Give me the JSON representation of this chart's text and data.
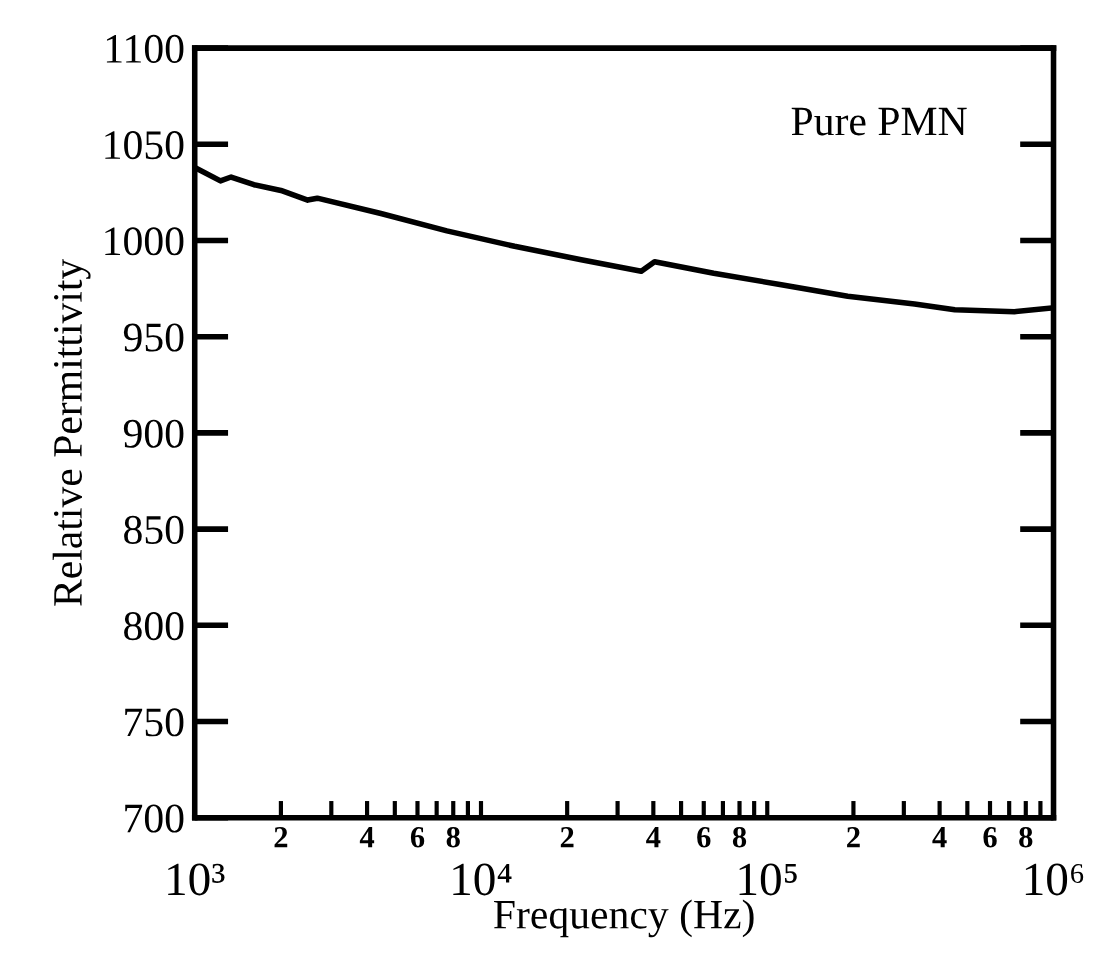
{
  "chart_data": {
    "type": "line",
    "xlabel": "Frequency (Hz)",
    "ylabel": "Relative Permittivity",
    "annotations": [
      "Pure PMN",
      "2",
      "4",
      "6",
      "8",
      "2",
      "4",
      "6",
      "8",
      "2",
      "4",
      "6",
      "8"
    ],
    "log": "x",
    "grid": false,
    "marker": "none",
    "line_style": "solid",
    "xlim": [
      1000,
      1000000
    ],
    "ylim": [
      700,
      1100
    ],
    "yticks": [
      700,
      750,
      800,
      850,
      900,
      950,
      1000,
      1050,
      1100
    ],
    "xticks": [
      {
        "value": 1000,
        "label": "10³"
      },
      {
        "value": 2000,
        "label": null
      },
      {
        "value": 3000,
        "label": null
      },
      {
        "value": 4000,
        "label": null
      },
      {
        "value": 5000,
        "label": null
      },
      {
        "value": 6000,
        "label": null
      },
      {
        "value": 7000,
        "label": null
      },
      {
        "value": 8000,
        "label": null
      },
      {
        "value": 9000,
        "label": null
      },
      {
        "value": 10000,
        "label": "10⁴"
      },
      {
        "value": 20000,
        "label": null
      },
      {
        "value": 30000,
        "label": null
      },
      {
        "value": 40000,
        "label": null
      },
      {
        "value": 50000,
        "label": null
      },
      {
        "value": 60000,
        "label": null
      },
      {
        "value": 70000,
        "label": null
      },
      {
        "value": 80000,
        "label": null
      },
      {
        "value": 90000,
        "label": null
      },
      {
        "value": 100000,
        "label": "10⁵"
      },
      {
        "value": 200000,
        "label": null
      },
      {
        "value": 300000,
        "label": null
      },
      {
        "value": 400000,
        "label": null
      },
      {
        "value": 500000,
        "label": null
      },
      {
        "value": 600000,
        "label": null
      },
      {
        "value": 700000,
        "label": null
      },
      {
        "value": 800000,
        "label": null
      },
      {
        "value": 900000,
        "label": null
      },
      {
        "value": 1000000,
        "label": "10⁶"
      }
    ],
    "series": [
      {
        "color": "#000000",
        "x": [
          1000,
          1230,
          1340,
          1610,
          2000,
          2480,
          2680,
          4470,
          7600,
          13100,
          22400,
          36300,
          40400,
          65000,
          112000,
          191000,
          327000,
          452000,
          730000,
          1000000
        ],
        "values": [
          1038,
          1031,
          1033,
          1029,
          1026,
          1021,
          1022,
          1014,
          1005,
          997,
          990,
          984,
          989,
          983,
          977,
          971,
          967,
          964,
          963,
          965
        ]
      }
    ]
  }
}
